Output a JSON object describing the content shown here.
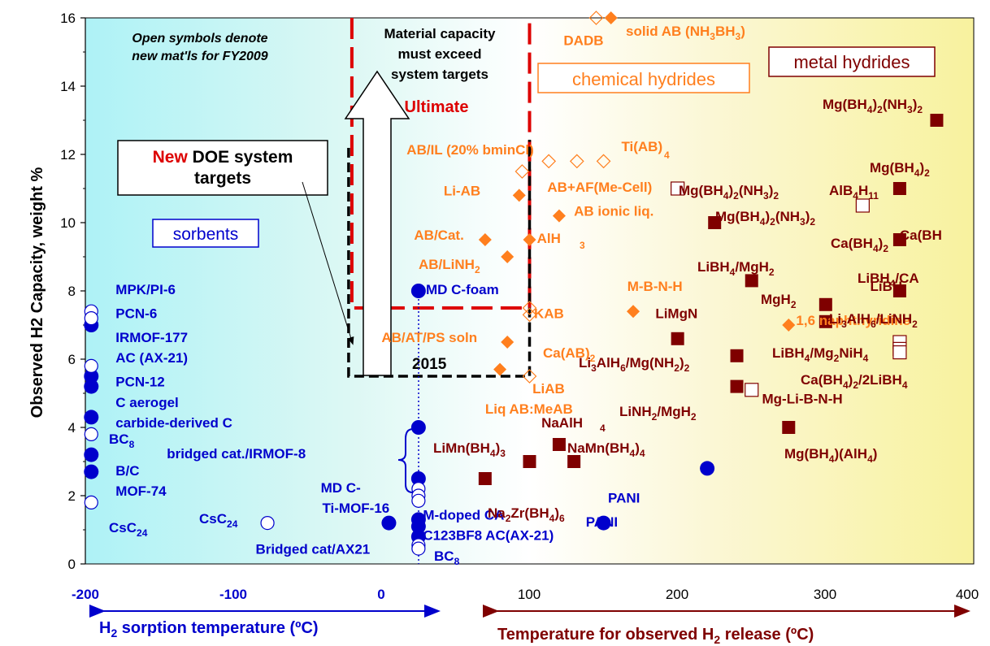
{
  "chart_data": {
    "type": "scatter",
    "title": "",
    "ylabel": "Observed H2 Capacity, weight %",
    "ylim": [
      0,
      16
    ],
    "y_ticks": [
      0,
      2,
      4,
      6,
      8,
      10,
      12,
      14,
      16
    ],
    "x_ticks_sorption": [
      "-200",
      "-100",
      "0"
    ],
    "x_ticks_release": [
      "100",
      "200",
      "300",
      "400"
    ],
    "x_axis_labels": {
      "sorption": "H2 sorption temperature (ºC)",
      "release": "Temperature for observed H2 release (ºC)"
    },
    "colors": {
      "sorbent": "#0000cc",
      "chemical": "#ff7f1e",
      "metal": "#7f0000",
      "target_red": "#dd0000",
      "target_black": "#000000"
    },
    "annotations": {
      "open_symbols_line1": "Open symbols denote",
      "open_symbols_line2": "new mat'ls for FY2009",
      "material_line1": "Material capacity",
      "material_line2": "must exceed",
      "material_line3": "system targets",
      "ultimate": "Ultimate",
      "year_2015": "2015",
      "new_word": "New",
      "doe_system": "DOE system",
      "targets": "targets",
      "sorbents_box": "sorbents",
      "chemical_box": "chemical hydrides",
      "metal_box": "metal hydrides"
    },
    "targets": {
      "ultimate": {
        "x_start": -20,
        "x_end": 100,
        "y_top": 16,
        "y_bottom": 7.5
      },
      "y2015": {
        "x_start": -20,
        "x_end": 100,
        "y_top": 16,
        "y_bottom": 5.5
      }
    },
    "series": [
      {
        "category": "sorbents-filled",
        "points": [
          {
            "x": -196,
            "y": 7.0
          },
          {
            "x": -196,
            "y": 5.5
          },
          {
            "x": -196,
            "y": 5.2
          },
          {
            "x": -196,
            "y": 4.3
          },
          {
            "x": -196,
            "y": 3.2
          },
          {
            "x": -196,
            "y": 2.7
          },
          {
            "x": 25,
            "y": 8.0
          },
          {
            "x": 25,
            "y": 4.0
          },
          {
            "x": 25,
            "y": 2.5
          },
          {
            "x": 25,
            "y": 1.3
          },
          {
            "x": 25,
            "y": 1.1
          },
          {
            "x": 25,
            "y": 0.8
          },
          {
            "x": 5,
            "y": 1.2
          },
          {
            "x": 150,
            "y": 1.2
          },
          {
            "x": 220,
            "y": 2.8
          }
        ]
      },
      {
        "category": "sorbents-open",
        "points": [
          {
            "x": -196,
            "y": 7.4
          },
          {
            "x": -196,
            "y": 7.2
          },
          {
            "x": -196,
            "y": 5.8
          },
          {
            "x": -196,
            "y": 3.8
          },
          {
            "x": -196,
            "y": 1.8
          },
          {
            "x": -77,
            "y": 1.2
          },
          {
            "x": 25,
            "y": 2.2
          },
          {
            "x": 25,
            "y": 2.0
          },
          {
            "x": 25,
            "y": 1.85
          },
          {
            "x": 25,
            "y": 0.55
          },
          {
            "x": 25,
            "y": 0.45
          }
        ]
      },
      {
        "category": "chemical-filled",
        "points": [
          {
            "x": 155,
            "y": 16.0
          },
          {
            "x": 93,
            "y": 10.8
          },
          {
            "x": 120,
            "y": 10.2
          },
          {
            "x": 70,
            "y": 9.5
          },
          {
            "x": 100,
            "y": 9.5
          },
          {
            "x": 85,
            "y": 9.0
          },
          {
            "x": 170,
            "y": 7.4
          },
          {
            "x": 275,
            "y": 7.0
          },
          {
            "x": 85,
            "y": 6.5
          },
          {
            "x": 80,
            "y": 5.7
          }
        ]
      },
      {
        "category": "chemical-open",
        "points": [
          {
            "x": 145,
            "y": 16.0
          },
          {
            "x": 95,
            "y": 11.5
          },
          {
            "x": 113,
            "y": 11.8
          },
          {
            "x": 132,
            "y": 11.8
          },
          {
            "x": 150,
            "y": 11.8
          },
          {
            "x": 100,
            "y": 7.5
          },
          {
            "x": 100,
            "y": 7.3
          },
          {
            "x": 100,
            "y": 5.5
          }
        ]
      },
      {
        "category": "metal-filled",
        "points": [
          {
            "x": 375,
            "y": 13.0
          },
          {
            "x": 350,
            "y": 11.0
          },
          {
            "x": 225,
            "y": 10.0
          },
          {
            "x": 350,
            "y": 9.5
          },
          {
            "x": 250,
            "y": 8.3
          },
          {
            "x": 350,
            "y": 8.0
          },
          {
            "x": 300,
            "y": 7.6
          },
          {
            "x": 300,
            "y": 7.1
          },
          {
            "x": 200,
            "y": 6.6
          },
          {
            "x": 240,
            "y": 6.1
          },
          {
            "x": 240,
            "y": 5.2
          },
          {
            "x": 275,
            "y": 4.0
          },
          {
            "x": 120,
            "y": 3.5
          },
          {
            "x": 100,
            "y": 3.0
          },
          {
            "x": 130,
            "y": 3.0
          },
          {
            "x": 70,
            "y": 2.5
          }
        ]
      },
      {
        "category": "metal-open",
        "points": [
          {
            "x": 200,
            "y": 11.0
          },
          {
            "x": 325,
            "y": 10.5
          },
          {
            "x": 350,
            "y": 6.5
          },
          {
            "x": 350,
            "y": 6.3
          },
          {
            "x": 350,
            "y": 6.2
          },
          {
            "x": 250,
            "y": 5.1
          }
        ]
      }
    ],
    "point_labels": [
      {
        "text": "MPK/PI-6",
        "x": -196,
        "y": 7.9,
        "color": "sorbent"
      },
      {
        "text": "PCN-6",
        "x": -196,
        "y": 7.2,
        "color": "sorbent"
      },
      {
        "text": "IRMOF-177",
        "x": -196,
        "y": 6.5,
        "color": "sorbent"
      },
      {
        "text": "AC (AX-21)",
        "x": -196,
        "y": 5.9,
        "color": "sorbent"
      },
      {
        "text": "PCN-12",
        "x": -196,
        "y": 5.2,
        "color": "sorbent"
      },
      {
        "text": "C aerogel",
        "x": -196,
        "y": 4.6,
        "color": "sorbent"
      },
      {
        "text": "carbide-derived C",
        "x": -196,
        "y": 4.0,
        "color": "sorbent"
      },
      {
        "text": "B/C",
        "x": -196,
        "y": 2.6,
        "color": "sorbent"
      },
      {
        "text": "MOF-74",
        "x": -196,
        "y": 2.0,
        "color": "sorbent"
      },
      {
        "text": "bridged cat./IRMOF-8",
        "x": -145,
        "y": 3.1,
        "color": "sorbent"
      },
      {
        "text": "MD C-",
        "x": -41,
        "y": 2.1,
        "color": "sorbent"
      },
      {
        "text": "Ti-MOF-16",
        "x": -40,
        "y": 1.5,
        "color": "sorbent"
      },
      {
        "text": "Bridged cat/AX21",
        "x": -85,
        "y": 0.3,
        "color": "sorbent"
      },
      {
        "text": "M-doped CA",
        "x": 28,
        "y": 1.3,
        "color": "sorbent"
      },
      {
        "text": "C123BF8 AC(AX-21)",
        "x": 28,
        "y": 0.7,
        "color": "sorbent"
      },
      {
        "text": "MD C-foam",
        "x": 30,
        "y": 7.9,
        "color": "sorbent"
      },
      {
        "text": "PANI",
        "x": 153,
        "y": 1.8,
        "color": "sorbent"
      },
      {
        "text": "PANI",
        "x": 138,
        "y": 1.1,
        "color": "sorbent"
      },
      {
        "text": "DADB",
        "x": 123,
        "y": 15.2,
        "color": "chemical"
      },
      {
        "text": "AB/IL (20% bminCl)",
        "x": 17,
        "y": 12.0,
        "color": "chemical"
      },
      {
        "text": "Ti(AB)",
        "x": 162,
        "y": 12.1,
        "color": "chemical"
      },
      {
        "text": "AB+AF(Me-Cell)",
        "x": 112,
        "y": 10.9,
        "color": "chemical"
      },
      {
        "text": "Li-AB",
        "x": 42,
        "y": 10.8,
        "color": "chemical"
      },
      {
        "text": "AB ionic liq.",
        "x": 130,
        "y": 10.2,
        "color": "chemical"
      },
      {
        "text": "AB/Cat.",
        "x": 22,
        "y": 9.5,
        "color": "chemical"
      },
      {
        "text": "AlH",
        "x": 105,
        "y": 9.4,
        "color": "chemical"
      },
      {
        "text": "M-B-N-H",
        "x": 166,
        "y": 8.0,
        "color": "chemical"
      },
      {
        "text": "KAB",
        "x": 103,
        "y": 7.2,
        "color": "chemical"
      },
      {
        "text": "AB/AT/PS soln",
        "x": 0,
        "y": 6.5,
        "color": "chemical"
      },
      {
        "text": "LiAB",
        "x": 102,
        "y": 5.0,
        "color": "chemical"
      },
      {
        "text": "Liq AB:MeAB",
        "x": 70,
        "y": 4.4,
        "color": "chemical"
      },
      {
        "text": "1,6 naphthyridine",
        "x": 280,
        "y": 7.0,
        "color": "chemical"
      },
      {
        "text": "LiMgN",
        "x": 185,
        "y": 7.2,
        "color": "metal"
      },
      {
        "text": "Ca(BH",
        "x": 350,
        "y": 9.5,
        "color": "metal"
      },
      {
        "text": "LiBH",
        "x": 330,
        "y": 8.0,
        "color": "metal"
      },
      {
        "text": "Mg-Li-B-N-H",
        "x": 257,
        "y": 4.7,
        "color": "metal"
      },
      {
        "text": "NaAlH",
        "x": 108,
        "y": 4.0,
        "color": "metal"
      }
    ]
  }
}
